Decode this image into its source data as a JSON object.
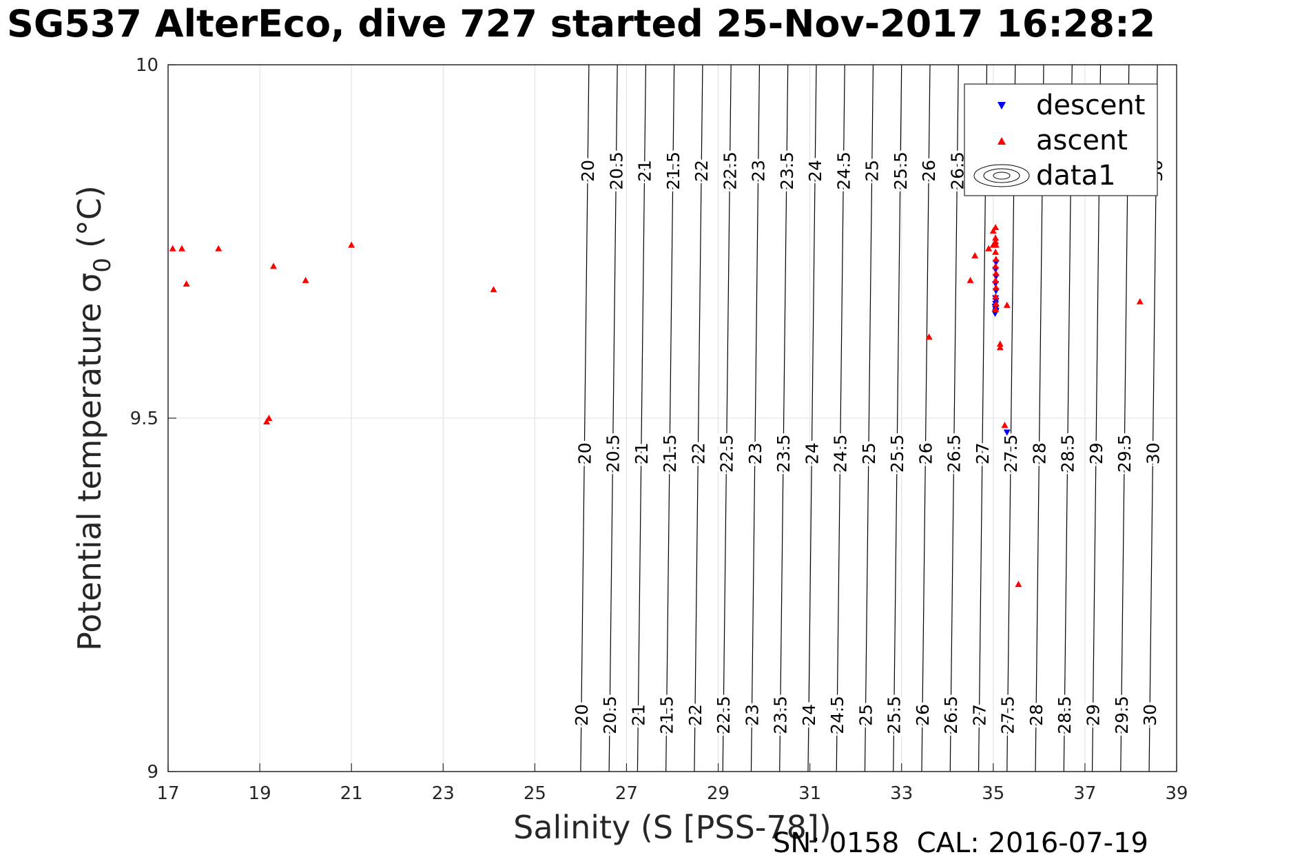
{
  "title": "SG537 AlterEco, dive 727 started 25-Nov-2017 16:28:2",
  "footer": "SN: 0158  CAL: 2016-07-19",
  "colors": {
    "descent": "#0000ff",
    "ascent": "#ff0000",
    "contour": "#000000",
    "grid": "#e0e0e0",
    "axis": "#262626"
  },
  "chart_data": {
    "type": "scatter",
    "xlabel": "Salinity (S [PSS-78])",
    "ylabel": "Potential temperature σ",
    "ylabel_sub": "0",
    "ylabel_unit": "(°C)",
    "xlim": [
      17,
      39
    ],
    "ylim": [
      9,
      10
    ],
    "xticks": [
      17,
      19,
      21,
      23,
      25,
      27,
      29,
      31,
      33,
      35,
      37,
      39
    ],
    "yticks": [
      9,
      9.5,
      10
    ],
    "ytick_labels": [
      "9",
      "9.5",
      "10"
    ],
    "grid": true,
    "legend": {
      "placement": "top-right",
      "entries": [
        "descent",
        "ascent",
        "data1"
      ]
    },
    "contour_levels": [
      20,
      20.5,
      21,
      21.5,
      22,
      22.5,
      23,
      23.5,
      24,
      24.5,
      25,
      25.5,
      26,
      26.5,
      27,
      27.5,
      28,
      28.5,
      29,
      29.5,
      30
    ],
    "contour_level_labels": [
      "20",
      "20.5",
      "21",
      "21.5",
      "22",
      "22.5",
      "23",
      "23.5",
      "24",
      "24.5",
      "25",
      "25.5",
      "26",
      "26.5",
      "27",
      "27.5",
      "28",
      "28.5",
      "29",
      "29.5",
      "30"
    ],
    "series": [
      {
        "name": "descent",
        "marker": "triangle-down",
        "points": [
          [
            35.05,
            9.93
          ],
          [
            35.06,
            9.72
          ],
          [
            35.05,
            9.71
          ],
          [
            35.06,
            9.7
          ],
          [
            35.05,
            9.69
          ],
          [
            35.06,
            9.68
          ],
          [
            35.05,
            9.67
          ],
          [
            35.06,
            9.666
          ],
          [
            35.05,
            9.662
          ],
          [
            35.04,
            9.658
          ],
          [
            35.05,
            9.655
          ],
          [
            35.06,
            9.652
          ],
          [
            35.05,
            9.65
          ],
          [
            35.04,
            9.648
          ],
          [
            35.3,
            9.48
          ]
        ]
      },
      {
        "name": "ascent",
        "marker": "triangle-up",
        "points": [
          [
            17.1,
            9.74
          ],
          [
            17.3,
            9.74
          ],
          [
            17.4,
            9.69
          ],
          [
            18.1,
            9.74
          ],
          [
            19.3,
            9.715
          ],
          [
            20.0,
            9.695
          ],
          [
            21.0,
            9.745
          ],
          [
            24.1,
            9.682
          ],
          [
            19.15,
            9.495
          ],
          [
            19.2,
            9.5
          ],
          [
            33.6,
            9.615
          ],
          [
            34.5,
            9.695
          ],
          [
            34.6,
            9.73
          ],
          [
            34.9,
            9.74
          ],
          [
            35.0,
            9.745
          ],
          [
            35.0,
            9.765
          ],
          [
            35.05,
            9.77
          ],
          [
            35.05,
            9.755
          ],
          [
            35.05,
            9.75
          ],
          [
            35.06,
            9.745
          ],
          [
            35.05,
            9.735
          ],
          [
            35.06,
            9.725
          ],
          [
            35.05,
            9.715
          ],
          [
            35.06,
            9.705
          ],
          [
            35.05,
            9.695
          ],
          [
            35.06,
            9.685
          ],
          [
            35.05,
            9.672
          ],
          [
            35.06,
            9.662
          ],
          [
            35.05,
            9.654
          ],
          [
            35.15,
            9.605
          ],
          [
            35.15,
            9.6
          ],
          [
            35.3,
            9.66
          ],
          [
            35.25,
            9.49
          ],
          [
            35.55,
            9.265
          ],
          [
            38.2,
            9.665
          ]
        ]
      }
    ]
  }
}
